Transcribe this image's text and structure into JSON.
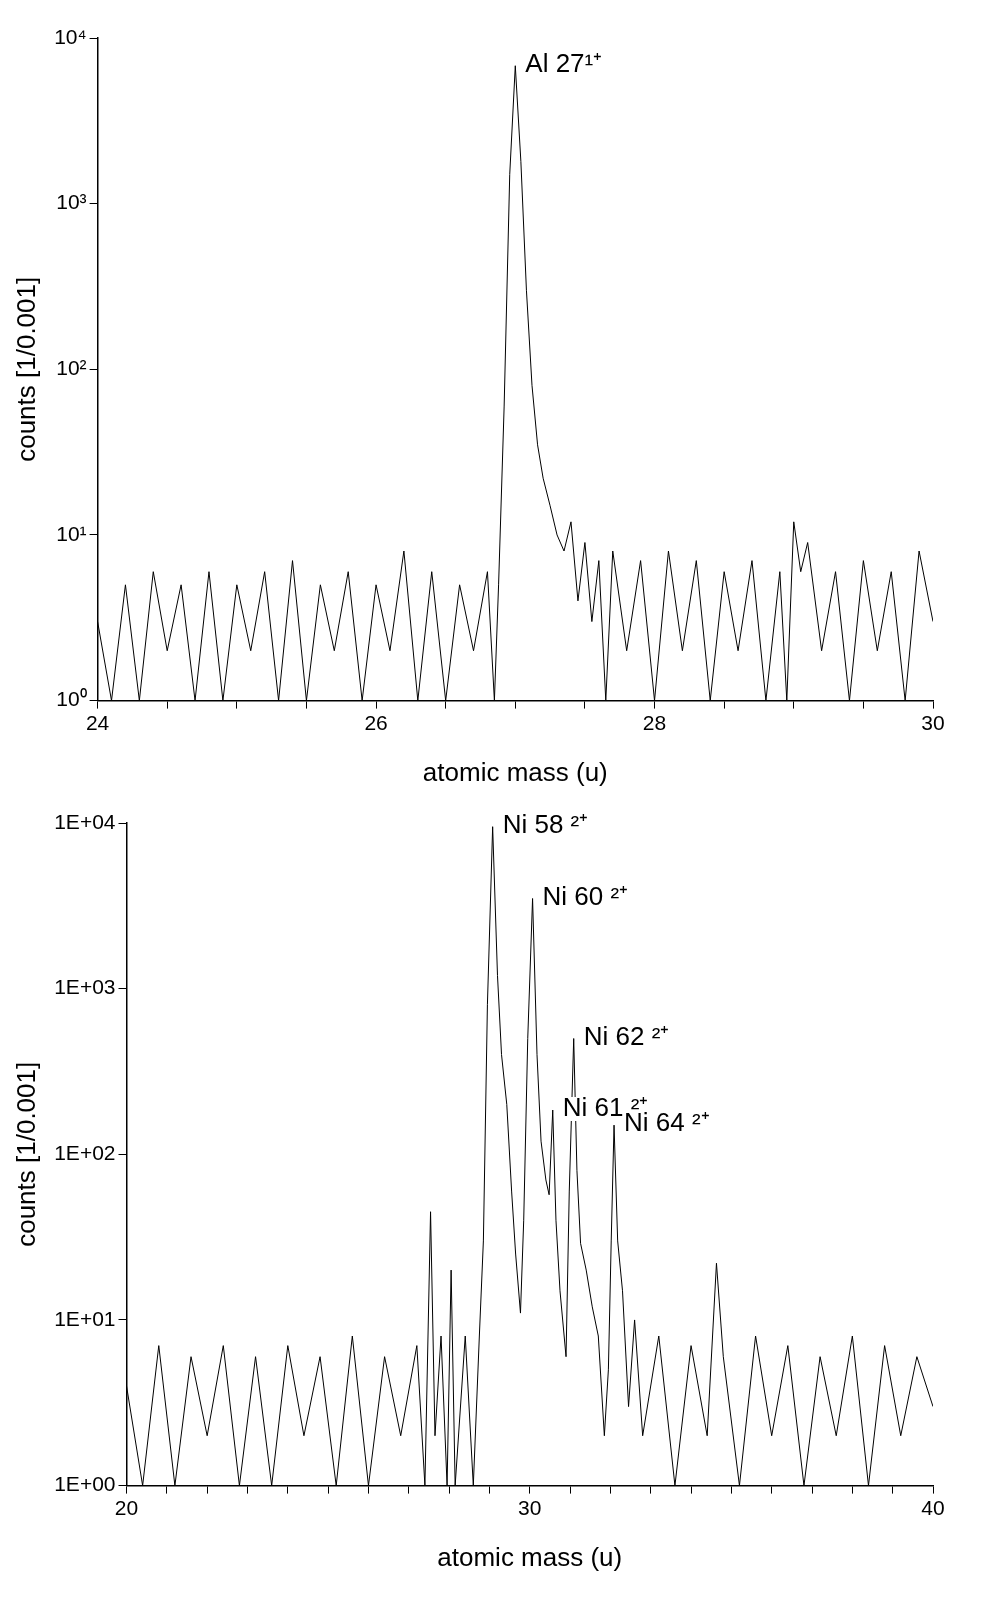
{
  "chart_data": [
    {
      "type": "line",
      "xlabel": "atomic mass (u)",
      "ylabel": "counts [1/0.001]",
      "log": "y",
      "grid": false,
      "legend": false,
      "marker": "none",
      "line_style": "solid",
      "xlim": [
        24,
        30
      ],
      "xticks": [
        24,
        {
          "value": 24.5,
          "label": null
        },
        {
          "value": 25,
          "label": null
        },
        {
          "value": 25.5,
          "label": null
        },
        26,
        {
          "value": 26.5,
          "label": null
        },
        {
          "value": 27,
          "label": null
        },
        {
          "value": 27.5,
          "label": null
        },
        28,
        {
          "value": 28.5,
          "label": null
        },
        {
          "value": 29,
          "label": null
        },
        {
          "value": 29.5,
          "label": null
        },
        30
      ],
      "ylim": [
        1,
        10000
      ],
      "yticks": [
        {
          "value": 1,
          "label": "10⁰"
        },
        {
          "value": 10,
          "label": "10¹"
        },
        {
          "value": 100,
          "label": "10²"
        },
        {
          "value": 1000,
          "label": "10³"
        },
        {
          "value": 10000,
          "label": "10⁴"
        }
      ],
      "annotations": [
        {
          "text": "Al 27¹⁺",
          "x": 27.0,
          "y": 6800
        }
      ],
      "series": [
        {
          "color": "#000000",
          "x": [
            24.0,
            24.1,
            24.2,
            24.3,
            24.4,
            24.5,
            24.6,
            24.7,
            24.8,
            24.9,
            25.0,
            25.1,
            25.2,
            25.3,
            25.4,
            25.5,
            25.6,
            25.7,
            25.8,
            25.9,
            26.0,
            26.1,
            26.2,
            26.3,
            26.4,
            26.5,
            26.6,
            26.7,
            26.8,
            26.85,
            26.88,
            26.92,
            26.96,
            27.0,
            27.04,
            27.08,
            27.12,
            27.16,
            27.2,
            27.25,
            27.3,
            27.35,
            27.4,
            27.45,
            27.5,
            27.55,
            27.6,
            27.65,
            27.7,
            27.8,
            27.9,
            28.0,
            28.1,
            28.2,
            28.3,
            28.4,
            28.5,
            28.6,
            28.7,
            28.8,
            28.9,
            28.95,
            29.0,
            29.05,
            29.1,
            29.2,
            29.3,
            29.4,
            29.5,
            29.6,
            29.7,
            29.8,
            29.9,
            30.0
          ],
          "values": [
            3,
            1,
            5,
            1,
            6,
            2,
            5,
            1,
            6,
            1,
            5,
            2,
            6,
            1,
            7,
            1,
            5,
            2,
            6,
            1,
            5,
            2,
            8,
            1,
            6,
            1,
            5,
            2,
            6,
            1,
            5,
            60,
            1500,
            6800,
            1800,
            300,
            80,
            35,
            22,
            15,
            10,
            8,
            12,
            4,
            9,
            3,
            7,
            1,
            8,
            2,
            7,
            1,
            8,
            2,
            7,
            1,
            6,
            2,
            7,
            1,
            6,
            1,
            12,
            6,
            9,
            2,
            6,
            1,
            7,
            2,
            6,
            1,
            8,
            3
          ]
        }
      ]
    },
    {
      "type": "line",
      "xlabel": "atomic mass (u)",
      "ylabel": "counts [1/0.001]",
      "log": "y",
      "grid": false,
      "legend": false,
      "marker": "none",
      "line_style": "solid",
      "xlim": [
        20,
        40
      ],
      "xticks": [
        20,
        {
          "value": 21,
          "label": null
        },
        {
          "value": 22,
          "label": null
        },
        {
          "value": 23,
          "label": null
        },
        {
          "value": 24,
          "label": null
        },
        {
          "value": 25,
          "label": null
        },
        {
          "value": 26,
          "label": null
        },
        {
          "value": 27,
          "label": null
        },
        {
          "value": 28,
          "label": null
        },
        {
          "value": 29,
          "label": null
        },
        30,
        {
          "value": 31,
          "label": null
        },
        {
          "value": 32,
          "label": null
        },
        {
          "value": 33,
          "label": null
        },
        {
          "value": 34,
          "label": null
        },
        {
          "value": 35,
          "label": null
        },
        {
          "value": 36,
          "label": null
        },
        {
          "value": 37,
          "label": null
        },
        {
          "value": 38,
          "label": null
        },
        {
          "value": 39,
          "label": null
        },
        40
      ],
      "ylim": [
        1,
        10000
      ],
      "yticks": [
        {
          "value": 1,
          "label": "1E+00"
        },
        {
          "value": 10,
          "label": "1E+01"
        },
        {
          "value": 100,
          "label": "1E+02"
        },
        {
          "value": 1000,
          "label": "1E+03"
        },
        {
          "value": 10000,
          "label": "1E+04"
        }
      ],
      "annotations": [
        {
          "text": "Ni 58 ²⁺",
          "x": 29.08,
          "y": 9500
        },
        {
          "text": "Ni 60 ²⁺",
          "x": 30.07,
          "y": 3500
        },
        {
          "text": "Ni 62 ²⁺",
          "x": 31.09,
          "y": 500
        },
        {
          "text": "Ni 61 ²⁺",
          "x": 30.57,
          "y": 185
        },
        {
          "text": "Ni 64 ²⁺",
          "x": 32.09,
          "y": 150
        }
      ],
      "series": [
        {
          "color": "#000000",
          "x": [
            20,
            20.4,
            20.8,
            21.2,
            21.6,
            22,
            22.4,
            22.8,
            23.2,
            23.6,
            24,
            24.4,
            24.8,
            25.2,
            25.6,
            26,
            26.4,
            26.8,
            27.2,
            27.4,
            27.54,
            27.65,
            27.8,
            27.95,
            28.05,
            28.15,
            28.4,
            28.6,
            28.75,
            28.85,
            28.95,
            29.08,
            29.2,
            29.3,
            29.43,
            29.55,
            29.65,
            29.77,
            29.85,
            29.95,
            30.07,
            30.18,
            30.28,
            30.4,
            30.48,
            30.57,
            30.65,
            30.75,
            30.9,
            30.98,
            31.09,
            31.17,
            31.26,
            31.4,
            31.55,
            31.7,
            31.85,
            31.95,
            32.02,
            32.09,
            32.18,
            32.3,
            32.45,
            32.6,
            32.8,
            33.2,
            33.6,
            34,
            34.4,
            34.63,
            34.8,
            35.2,
            35.6,
            36,
            36.4,
            36.8,
            37.2,
            37.6,
            38,
            38.4,
            38.8,
            39.2,
            39.6,
            40
          ],
          "values": [
            4,
            1,
            7,
            1,
            6,
            2,
            7,
            1,
            6,
            1,
            7,
            2,
            6,
            1,
            8,
            1,
            6,
            2,
            7,
            1,
            45,
            2,
            8,
            1,
            20,
            1,
            8,
            1,
            8,
            30,
            800,
            9500,
            1200,
            400,
            200,
            60,
            25,
            11,
            40,
            500,
            3500,
            400,
            120,
            70,
            57,
            185,
            40,
            15,
            6,
            60,
            500,
            80,
            29,
            20,
            12,
            8,
            2,
            5,
            30,
            150,
            30,
            15,
            3,
            10,
            2,
            8,
            1,
            7,
            2,
            22,
            6,
            1,
            8,
            2,
            7,
            1,
            6,
            2,
            8,
            1,
            7,
            2,
            6,
            3
          ]
        }
      ]
    }
  ]
}
